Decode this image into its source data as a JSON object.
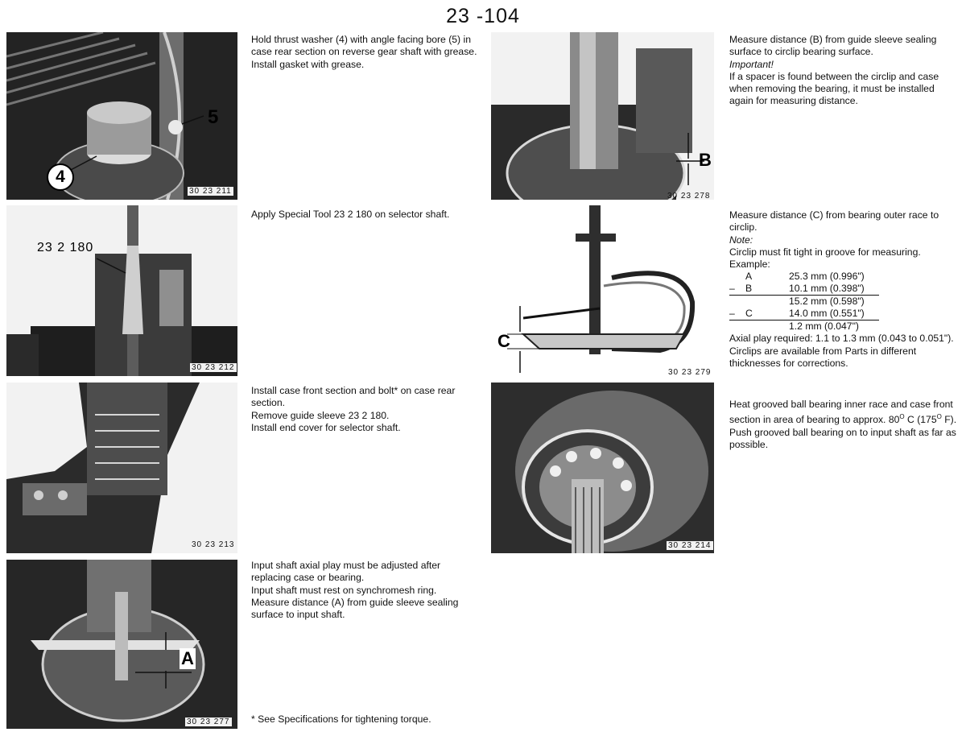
{
  "page": {
    "number": "23 -104"
  },
  "photos": {
    "p211": {
      "number": "30 23 211",
      "callouts": {
        "five": "5",
        "four": "4"
      }
    },
    "p212": {
      "number": "30 23 212",
      "tool_label": "23 2 180"
    },
    "p213": {
      "number": "30 23 213"
    },
    "p277": {
      "number": "30 23 277",
      "callouts": {
        "a": "A"
      }
    },
    "p278": {
      "number": "30 23 278",
      "callouts": {
        "b": "B"
      }
    },
    "p279": {
      "number": "30 23 279",
      "callouts": {
        "c": "C"
      }
    },
    "p214": {
      "number": "30 23 214"
    }
  },
  "steps": {
    "s211": [
      "Hold thrust washer (4) with angle facing bore (5) in case rear section on reverse gear shaft with grease.",
      "Install gasket with grease."
    ],
    "s212": [
      "Apply Special Tool 23 2 180 on selector shaft."
    ],
    "s213": [
      "Install case front section and bolt* on case rear section.",
      "Remove guide sleeve 23 2 180.",
      "Install end cover for selector shaft."
    ],
    "s277": [
      "Input shaft axial play must be adjusted after replacing case or bearing.",
      "Input shaft must rest on synchromesh ring.",
      "Measure distance (A) from guide sleeve sealing surface to input shaft."
    ],
    "s278": {
      "line1": "Measure distance (B) from guide sleeve sealing surface to circlip bearing surface.",
      "important": "Important!",
      "line2": "If a spacer is found between the circlip and case when removing the bearing, it must be installed again for measuring distance."
    },
    "s279": {
      "line1": "Measure distance (C) from bearing outer race to circlip.",
      "note": "Note:",
      "line2": "Circlip must fit tight in groove for measuring.",
      "example_heading": "Example:",
      "example_rows": [
        {
          "op": "",
          "label": "A",
          "value": "25.3 mm (0.996\")"
        },
        {
          "op": "–",
          "label": "B",
          "value": "10.1 mm (0.398\")"
        },
        {
          "op": "",
          "label": "",
          "value": "15.2 mm (0.598\")"
        },
        {
          "op": "–",
          "label": "C",
          "value": "14.0 mm (0.551\")"
        },
        {
          "op": "",
          "label": "",
          "value": "1.2 mm (0.047\")"
        }
      ],
      "axial": "Axial play required: 1.1 to 1.3 mm (0.043 to 0.051\").",
      "circlips": "Circlips are available from Parts in different thicknesses for corrections."
    },
    "s214": {
      "line1_pre": "Heat grooved ball bearing inner race and case front section in area of bearing to approx. 80",
      "deg1": "O",
      "line1_post": " C (175",
      "deg2": "O",
      "line1_end": " F).",
      "line2": "Push grooved ball bearing on to input shaft as far as possible."
    }
  },
  "footnote": "* See Specifications for tightening torque."
}
